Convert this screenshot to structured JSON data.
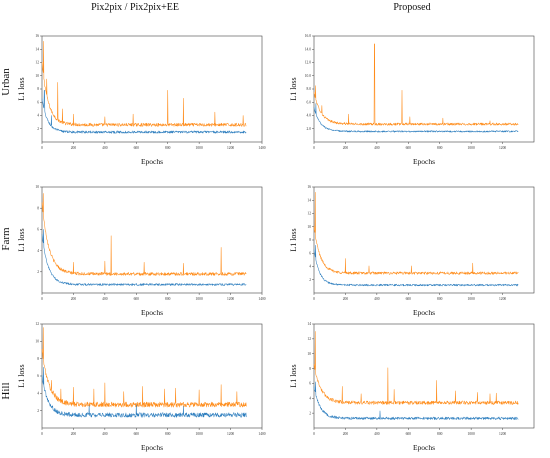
{
  "column_titles": [
    "Pix2pix / Pix2pix+EE",
    "Proposed"
  ],
  "row_labels": [
    "Urban",
    "Farm",
    "Hill"
  ],
  "colors": {
    "orange": "#ff8c1a",
    "blue": "#2f7fbf",
    "axis": "#444444"
  },
  "chart_data": [
    {
      "type": "line",
      "row": "Urban",
      "column": "Pix2pix / Pix2pix+EE",
      "xlabel": "Epochs",
      "ylabel": "L1 loss",
      "xlim": [
        0,
        1400
      ],
      "ylim": [
        0,
        16
      ],
      "x_ticks": [
        "0",
        "200",
        "400",
        "600",
        "800",
        "1000",
        "1200",
        "1400"
      ],
      "y_ticks": [
        "2",
        "4",
        "6",
        "8",
        "10",
        "12",
        "14",
        "16"
      ],
      "series": [
        {
          "color": "orange",
          "start": 12.0,
          "plateau": 2.6,
          "decay": 40,
          "noise": 0.25,
          "spikes": [
            [
              10,
              15.2
            ],
            [
              30,
              9.5
            ],
            [
              100,
              9.0
            ],
            [
              130,
              5.0
            ],
            [
              200,
              4.2
            ],
            [
              400,
              3.8
            ],
            [
              580,
              4.2
            ],
            [
              800,
              7.8
            ],
            [
              900,
              6.6
            ],
            [
              1100,
              4.5
            ],
            [
              1280,
              4.0
            ]
          ]
        },
        {
          "color": "blue",
          "start": 6.5,
          "plateau": 1.5,
          "decay": 35,
          "noise": 0.18,
          "spikes": [
            [
              15,
              7.8
            ],
            [
              60,
              4.0
            ]
          ]
        }
      ]
    },
    {
      "type": "line",
      "row": "Urban",
      "column": "Proposed",
      "xlabel": "Epochs",
      "ylabel": "L1 loss",
      "xlim": [
        0,
        1400
      ],
      "ylim": [
        0,
        16
      ],
      "x_ticks": [
        "0",
        "200",
        "400",
        "600",
        "800",
        "1000",
        "1200"
      ],
      "y_ticks": [
        "2.0",
        "4.0",
        "6.0",
        "8.0",
        "10.0",
        "12.0",
        "14.0",
        "16.0"
      ],
      "series": [
        {
          "color": "orange",
          "start": 7.5,
          "plateau": 2.7,
          "decay": 45,
          "noise": 0.18,
          "spikes": [
            [
              10,
              8.5
            ],
            [
              50,
              5.5
            ],
            [
              220,
              4.2
            ],
            [
              385,
              14.8
            ],
            [
              560,
              7.8
            ],
            [
              610,
              3.8
            ],
            [
              820,
              3.6
            ],
            [
              1120,
              3.2
            ]
          ]
        },
        {
          "color": "blue",
          "start": 5.2,
          "plateau": 1.6,
          "decay": 40,
          "noise": 0.12,
          "spikes": [
            [
              12,
              5.8
            ]
          ]
        }
      ]
    },
    {
      "type": "line",
      "row": "Farm",
      "column": "Pix2pix / Pix2pix+EE",
      "xlabel": "Epochs",
      "ylabel": "L1 loss",
      "xlim": [
        0,
        1400
      ],
      "ylim": [
        0,
        10
      ],
      "x_ticks": [
        "0",
        "200",
        "400",
        "600",
        "800",
        "1000",
        "1200",
        "1400"
      ],
      "y_ticks": [
        "2",
        "4",
        "6",
        "8",
        "10"
      ],
      "series": [
        {
          "color": "orange",
          "start": 8.5,
          "plateau": 1.8,
          "decay": 45,
          "noise": 0.15,
          "spikes": [
            [
              8,
              9.4
            ],
            [
              60,
              3.5
            ],
            [
              200,
              2.9
            ],
            [
              400,
              3.0
            ],
            [
              440,
              5.4
            ],
            [
              650,
              2.9
            ],
            [
              900,
              2.8
            ],
            [
              1140,
              4.3
            ]
          ]
        },
        {
          "color": "blue",
          "start": 5.5,
          "plateau": 0.8,
          "decay": 40,
          "noise": 0.1,
          "spikes": [
            [
              10,
              6.0
            ]
          ]
        }
      ]
    },
    {
      "type": "line",
      "row": "Farm",
      "column": "Proposed",
      "xlabel": "Epochs",
      "ylabel": "L1 loss",
      "xlim": [
        0,
        1400
      ],
      "ylim": [
        0,
        16
      ],
      "x_ticks": [
        "0",
        "200",
        "400",
        "600",
        "800",
        "1000",
        "1200"
      ],
      "y_ticks": [
        "2",
        "4",
        "6",
        "8",
        "10",
        "12",
        "14",
        "16"
      ],
      "series": [
        {
          "color": "orange",
          "start": 10.0,
          "plateau": 3.0,
          "decay": 40,
          "noise": 0.2,
          "spikes": [
            [
              8,
              15.2
            ],
            [
              200,
              5.2
            ],
            [
              350,
              4.1
            ],
            [
              620,
              4.1
            ],
            [
              1010,
              4.5
            ]
          ]
        },
        {
          "color": "blue",
          "start": 6.5,
          "plateau": 1.2,
          "decay": 35,
          "noise": 0.14,
          "spikes": [
            [
              10,
              7.2
            ]
          ]
        }
      ]
    },
    {
      "type": "line",
      "row": "Hill",
      "column": "Pix2pix / Pix2pix+EE",
      "xlabel": "Epochs",
      "ylabel": "L1 loss",
      "xlim": [
        0,
        1400
      ],
      "ylim": [
        0,
        12
      ],
      "x_ticks": [
        "0",
        "200",
        "400",
        "600",
        "800",
        "1000",
        "1200",
        "1400"
      ],
      "y_ticks": [
        "2",
        "4",
        "6",
        "8",
        "10",
        "12"
      ],
      "series": [
        {
          "color": "orange",
          "start": 9.0,
          "plateau": 2.7,
          "decay": 45,
          "noise": 0.3,
          "spikes": [
            [
              8,
              11.6
            ],
            [
              60,
              5.5
            ],
            [
              120,
              4.5
            ],
            [
              200,
              4.7
            ],
            [
              330,
              4.5
            ],
            [
              400,
              5.2
            ],
            [
              520,
              4.2
            ],
            [
              640,
              4.8
            ],
            [
              780,
              4.5
            ],
            [
              850,
              4.6
            ],
            [
              1000,
              4.4
            ],
            [
              1140,
              5.0
            ],
            [
              1240,
              4.2
            ]
          ]
        },
        {
          "color": "blue",
          "start": 6.0,
          "plateau": 1.5,
          "decay": 40,
          "noise": 0.26,
          "spikes": [
            [
              10,
              7.0
            ],
            [
              300,
              2.6
            ],
            [
              600,
              2.7
            ],
            [
              900,
              2.5
            ]
          ]
        }
      ]
    },
    {
      "type": "line",
      "row": "Hill",
      "column": "Proposed",
      "xlabel": "Epochs",
      "ylabel": "L1 loss",
      "xlim": [
        0,
        1400
      ],
      "ylim": [
        0,
        14
      ],
      "x_ticks": [
        "0",
        "200",
        "400",
        "600",
        "800",
        "1000",
        "1200"
      ],
      "y_ticks": [
        "2",
        "4",
        "6",
        "8",
        "10",
        "12",
        "14"
      ],
      "series": [
        {
          "color": "orange",
          "start": 8.5,
          "plateau": 3.4,
          "decay": 45,
          "noise": 0.24,
          "spikes": [
            [
              8,
              13.0
            ],
            [
              180,
              5.6
            ],
            [
              300,
              4.6
            ],
            [
              470,
              8.1
            ],
            [
              510,
              5.2
            ],
            [
              780,
              6.4
            ],
            [
              900,
              5.0
            ],
            [
              1040,
              4.8
            ],
            [
              1120,
              4.6
            ],
            [
              1160,
              4.7
            ]
          ]
        },
        {
          "color": "blue",
          "start": 5.5,
          "plateau": 1.3,
          "decay": 40,
          "noise": 0.18,
          "spikes": [
            [
              10,
              6.2
            ],
            [
              420,
              2.3
            ]
          ]
        }
      ]
    }
  ]
}
